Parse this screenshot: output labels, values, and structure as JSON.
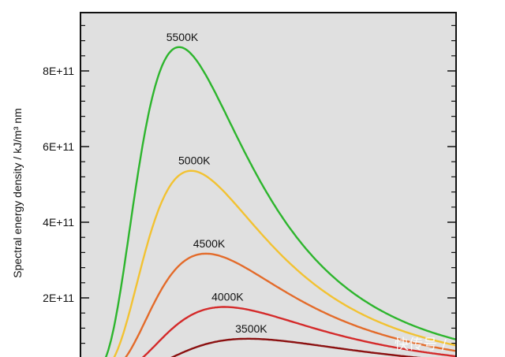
{
  "chart_data": {
    "type": "line",
    "title": "",
    "xlabel": "",
    "ylabel": "Spectral energy density / kJ/m³ nm",
    "ylim": [
      0,
      940000000000.0
    ],
    "xlim": [
      0,
      2500
    ],
    "grid": false,
    "y_ticks": [
      {
        "value": 200000000000.0,
        "label": "2E+11"
      },
      {
        "value": 400000000000.0,
        "label": "4E+11"
      },
      {
        "value": 600000000000.0,
        "label": "6E+11"
      },
      {
        "value": 800000000000.0,
        "label": "8E+11"
      }
    ],
    "series": [
      {
        "name": "5500K",
        "temperature": 5500,
        "peak": 863000000000.0,
        "color": "#2db52d"
      },
      {
        "name": "5000K",
        "temperature": 5000,
        "peak": 536000000000.0,
        "color": "#f2c232"
      },
      {
        "name": "4500K",
        "temperature": 4500,
        "peak": 317000000000.0,
        "color": "#e36b2a"
      },
      {
        "name": "4000K",
        "temperature": 4000,
        "peak": 176000000000.0,
        "color": "#d42a2a"
      },
      {
        "name": "3500K",
        "temperature": 3500,
        "peak": 92000000000.0,
        "color": "#8b1010"
      }
    ]
  },
  "watermark": {
    "text": "快传号 /"
  }
}
